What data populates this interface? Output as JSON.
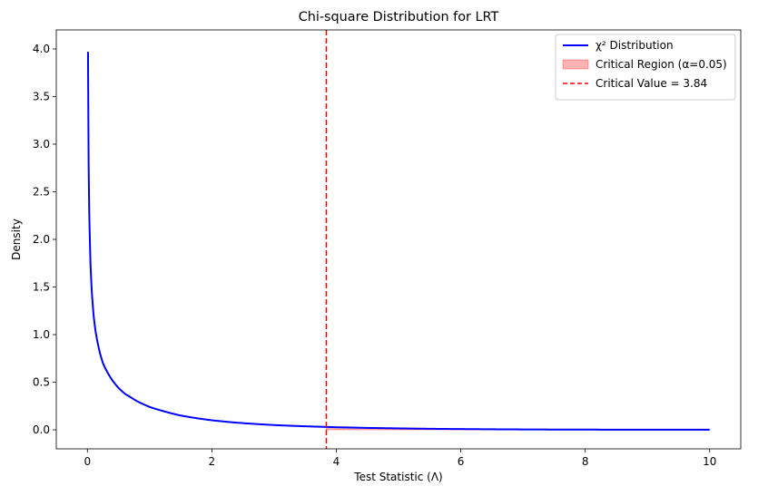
{
  "chart_data": {
    "type": "line",
    "title": "Chi-square Distribution for LRT",
    "xlabel": "Test Statistic (Λ)",
    "ylabel": "Density",
    "xlim": [
      -0.5,
      10.5
    ],
    "ylim": [
      -0.2,
      4.2
    ],
    "xticks": [
      0,
      2,
      4,
      6,
      8,
      10
    ],
    "xtick_labels": [
      "0",
      "2",
      "4",
      "6",
      "8",
      "10"
    ],
    "yticks": [
      0.0,
      0.5,
      1.0,
      1.5,
      2.0,
      2.5,
      3.0,
      3.5,
      4.0
    ],
    "ytick_labels": [
      "0.0",
      "0.5",
      "1.0",
      "1.5",
      "2.0",
      "2.5",
      "3.0",
      "3.5",
      "4.0"
    ],
    "grid": false,
    "legend_position": "top-right",
    "series": [
      {
        "name": "χ² Distribution",
        "kind": "line",
        "color": "#0000ff",
        "x": [
          0.01,
          0.02,
          0.03,
          0.05,
          0.07,
          0.1,
          0.13,
          0.16,
          0.2,
          0.25,
          0.3,
          0.4,
          0.5,
          0.6,
          0.7,
          0.8,
          1.0,
          1.2,
          1.5,
          2.0,
          2.5,
          3.0,
          3.5,
          3.84,
          4.0,
          5.0,
          6.0,
          7.0,
          8.0,
          9.0,
          10.0
        ],
        "y": [
          3.97,
          2.79,
          2.27,
          1.74,
          1.46,
          1.2,
          1.04,
          0.93,
          0.81,
          0.7,
          0.63,
          0.52,
          0.44,
          0.38,
          0.34,
          0.3,
          0.24,
          0.2,
          0.15,
          0.1,
          0.07,
          0.05,
          0.037,
          0.03,
          0.027,
          0.015,
          0.008,
          0.004,
          0.002,
          0.0012,
          0.0007
        ]
      },
      {
        "name": "Critical Region (α=0.05)",
        "kind": "area",
        "color": "#ff0000",
        "opacity": 0.3,
        "x": [
          3.84,
          4.0,
          5.0,
          6.0,
          7.0,
          8.0,
          9.0,
          10.0
        ],
        "y": [
          0.03,
          0.027,
          0.015,
          0.008,
          0.004,
          0.002,
          0.0012,
          0.0007
        ]
      },
      {
        "name": "Critical Value = 3.84",
        "kind": "vline",
        "color": "#ff0000",
        "dash": true,
        "x": 3.84
      }
    ]
  }
}
